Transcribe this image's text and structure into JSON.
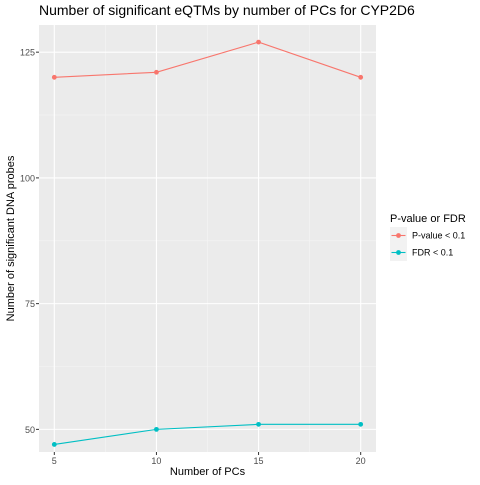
{
  "chart_data": {
    "type": "line",
    "title": "Number of significant eQTMs by number of PCs for CYP2D6",
    "xlabel": "Number of PCs",
    "ylabel": "Number of significant DNA probes",
    "x": [
      5,
      10,
      15,
      20
    ],
    "xticks": [
      5,
      10,
      15,
      20
    ],
    "yticks": [
      50,
      75,
      100,
      125
    ],
    "xlim": [
      4.25,
      20.75
    ],
    "ylim": [
      45.5,
      130.4
    ],
    "grid": true,
    "legend": {
      "title": "P-value or FDR",
      "position": "right"
    },
    "series": [
      {
        "name": "P-value < 0.1",
        "color": "#F8766D",
        "values": [
          120,
          121,
          127,
          120
        ]
      },
      {
        "name": "FDR < 0.1",
        "color": "#00BFC4",
        "values": [
          47,
          50,
          51,
          51
        ]
      }
    ]
  }
}
